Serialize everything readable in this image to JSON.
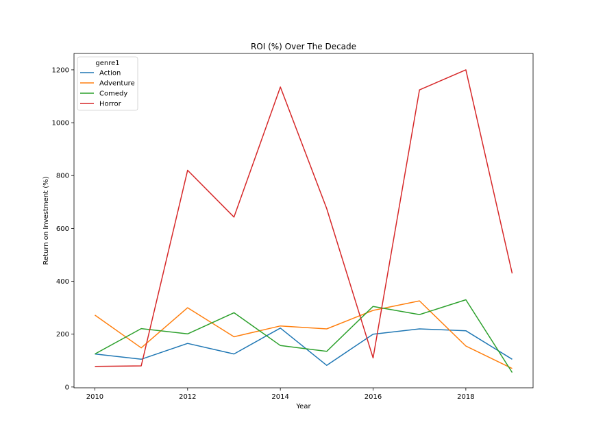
{
  "chart_data": {
    "type": "line",
    "title": "ROI (%) Over The Decade",
    "xlabel": "Year",
    "ylabel": "Return on Investment (%)",
    "x": [
      2010,
      2011,
      2012,
      2013,
      2014,
      2015,
      2016,
      2017,
      2018,
      2019
    ],
    "xlim": [
      2009.55,
      2019.45
    ],
    "ylim": [
      -3,
      1262
    ],
    "xticks": [
      2010,
      2012,
      2014,
      2016,
      2018
    ],
    "yticks": [
      0,
      200,
      400,
      600,
      800,
      1000,
      1200
    ],
    "grid": false,
    "legend": {
      "title": "genre1",
      "placement": "top-left"
    },
    "series": [
      {
        "name": "Action",
        "color": "#1f77b4",
        "values": [
          125,
          105,
          165,
          125,
          223,
          82,
          200,
          220,
          213,
          105
        ]
      },
      {
        "name": "Adventure",
        "color": "#ff7f0e",
        "values": [
          272,
          148,
          300,
          190,
          231,
          220,
          290,
          326,
          155,
          70
        ]
      },
      {
        "name": "Comedy",
        "color": "#2ca02c",
        "values": [
          125,
          221,
          201,
          281,
          157,
          135,
          305,
          274,
          330,
          55
        ]
      },
      {
        "name": "Horror",
        "color": "#d62728",
        "values": [
          78,
          80,
          820,
          643,
          1135,
          675,
          110,
          1124,
          1200,
          430
        ]
      }
    ]
  }
}
